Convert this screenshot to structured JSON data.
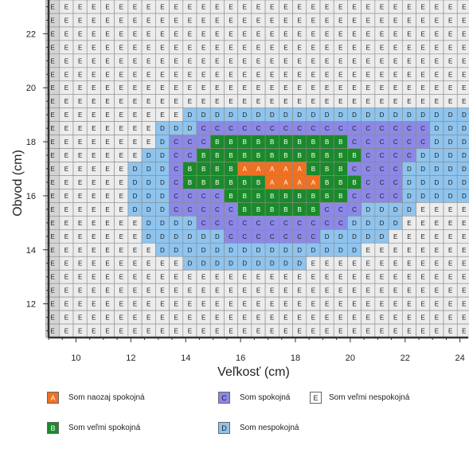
{
  "chart_data": {
    "type": "heatmap",
    "xlabel": "Veľkosť (cm)",
    "ylabel": "Obvod (cm)",
    "xlim": [
      9,
      24.3
    ],
    "ylim": [
      10.75,
      23.25
    ],
    "x_ticks": [
      10,
      12,
      14,
      16,
      18,
      20,
      22,
      24
    ],
    "y_ticks": [
      12,
      14,
      16,
      18,
      20,
      22
    ],
    "x_cells": [
      9.15,
      9.65,
      10.15,
      10.65,
      11.15,
      11.65,
      12.15,
      12.65,
      13.15,
      13.65,
      14.15,
      14.65,
      15.15,
      15.65,
      16.15,
      16.65,
      17.15,
      17.65,
      18.15,
      18.65,
      19.15,
      19.65,
      20.15,
      20.65,
      21.15,
      21.65,
      22.15,
      22.65,
      23.15,
      23.65,
      24.15
    ],
    "y_cells": [
      23.0,
      22.5,
      22.0,
      21.5,
      21.0,
      20.5,
      20.0,
      19.5,
      19.0,
      18.5,
      18.0,
      17.5,
      17.0,
      16.5,
      16.0,
      15.5,
      15.0,
      14.5,
      14.0,
      13.5,
      13.0,
      12.5,
      12.0,
      11.5,
      11.0
    ],
    "cell_matrix": [
      "EEEEEEEEEEEEEEEEEEEEEEEEEEEEEEE",
      "EEEEEEEEEEEEEEEEEEEEEEEEEEEEEEE",
      "EEEEEEEEEEEEEEEEEEEEEEEEEEEEEEE",
      "EEEEEEEEEEEEEEEEEEEEEEEEEEEEEEE",
      "EEEEEEEEEEEEEEEEEEEEEEEEEEEEEEE",
      "EEEEEEEEEEEEEEEEEEEEEEEEEEEEEEE",
      "EEEEEEEEEEEEEEEEEEEEEEEEEEEEEEE",
      "EEEEEEEEEEEEEEEEEEEEEEEEEEEEEEE",
      "EEEEEEEEEEDDDDDDDDDDDDDDDDDDDDD",
      "EEEEEEEEDDDCCCCCCCCCCCCCCCCCDDD",
      "EEEEEEEEDCCCBBBBBBBBBBCCCCCCDDD",
      "EEEEEEEDDCCBBBBBBBBBBBBCCCCDDDD",
      "EEEEEEDDDCBBBBAAAAABBBCCCCDDDDD",
      "EEEEEEDDDCBBBBBBAAAABBBCCCDDDDD",
      "EEEEEEDDDCCCCBBBBBBBBBCCCCDDDDD",
      "EEEEEEDDDCCCCCBBBBBBCCCDDDDEEEE",
      "EEEEEEEDDDDCCCCCCCCCCCDDDDEEEEE",
      "EEEEEEEDDDDDDCCCCCCCDDDDDEEEEEE",
      "EEEEEEEEDDDDDDDDDDDDDDDEEEEEEEE",
      "EEEEEEEEEEDDDDDDDDDEEEEEEEEEEEE",
      "EEEEEEEEEEEEEEEEEEEEEEEEEEEEEEE",
      "EEEEEEEEEEEEEEEEEEEEEEEEEEEEEEE",
      "EEEEEEEEEEEEEEEEEEEEEEEEEEEEEEE",
      "EEEEEEEEEEEEEEEEEEEEEEEEEEEEEEE",
      "EEEEEEEEEEEEEEEEEEEEEEEEEEEEEEE"
    ],
    "categories": [
      {
        "code": "A",
        "label": "Som naozaj spokojná",
        "color": "#f07020"
      },
      {
        "code": "B",
        "label": "Som veľmi spokojná",
        "color": "#1a8a2a"
      },
      {
        "code": "C",
        "label": "Som spokojná",
        "color": "#8c88e8"
      },
      {
        "code": "D",
        "label": "Som nespokojná",
        "color": "#8ec4ee"
      },
      {
        "code": "E",
        "label": "Som veľmi nespokojná",
        "color": "#ececec"
      }
    ],
    "left_band_color": "#d4d4d4"
  }
}
